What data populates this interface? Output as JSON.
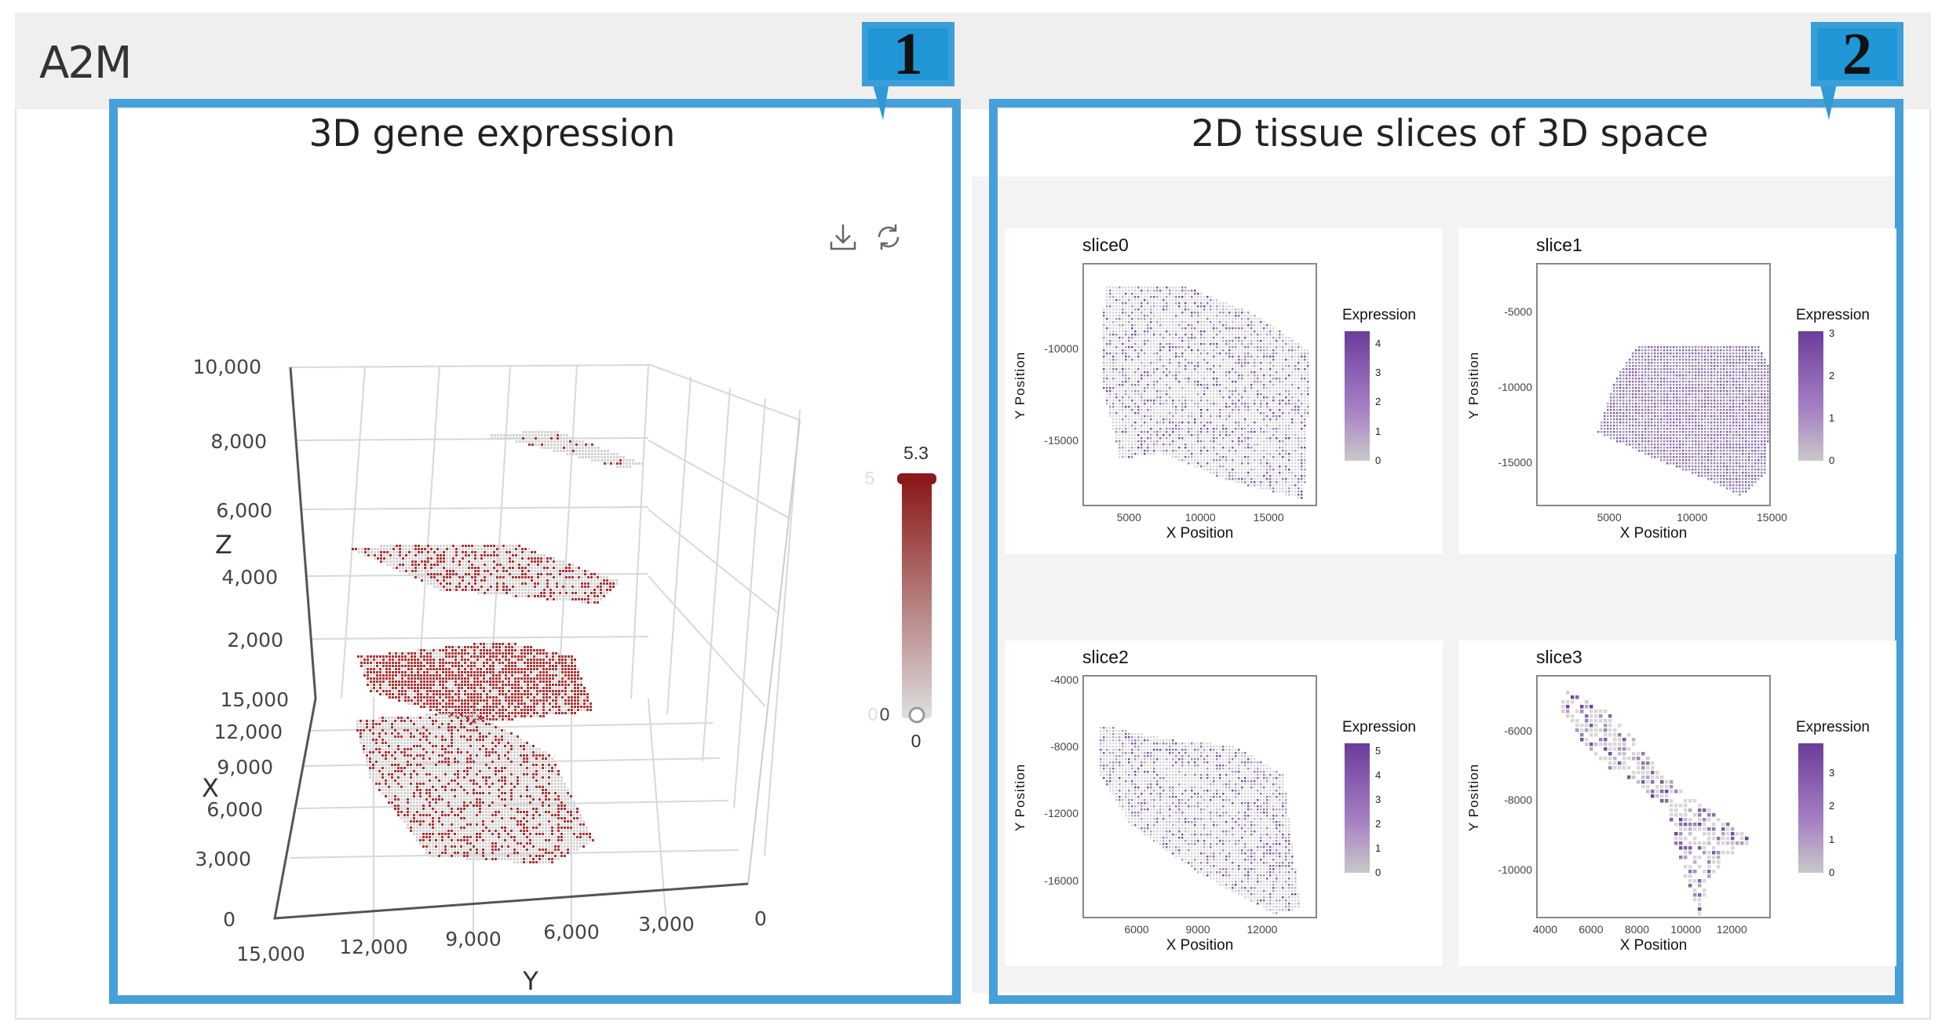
{
  "gene": "A2M",
  "badges": [
    "1",
    "2"
  ],
  "panel1": {
    "title": "3D gene expression",
    "toolbar": {
      "download_icon": "download-icon",
      "refresh_icon": "refresh-icon"
    },
    "axes": {
      "z_label": "Z",
      "x_label": "X",
      "y_label": "Y",
      "z_ticks": [
        "10,000",
        "8,000",
        "6,000",
        "4,000",
        "2,000"
      ],
      "x_ticks": [
        "15,000",
        "12,000",
        "9,000",
        "6,000",
        "3,000",
        "0"
      ],
      "y_ticks": [
        "15,000",
        "12,000",
        "9,000",
        "6,000",
        "3,000",
        "0"
      ]
    },
    "colorbar": {
      "max_label": "5.3",
      "min_label": "0",
      "faint_max": "5",
      "faint_min": "0",
      "low_color": "#d9d9d9",
      "high_color": "#8b1a1a"
    }
  },
  "panel2": {
    "title": "2D tissue slices of 3D space",
    "slices": [
      {
        "name": "slice0",
        "xlabel": "X Position",
        "ylabel": "Y Position",
        "legend": "Expression",
        "xlim": [
          1450,
          18640
        ],
        "ylim": [
          -18520,
          -5310
        ],
        "xticks": [
          5000,
          10000,
          15000
        ],
        "yticks": [
          -10000,
          -15000
        ],
        "cmax": 4.42,
        "cticks": [
          0,
          1,
          2,
          3,
          4
        ]
      },
      {
        "name": "slice1",
        "xlabel": "X Position",
        "ylabel": "Y Position",
        "legend": "Expression",
        "xlim": [
          300,
          15000
        ],
        "ylim": [
          -17860,
          -1750
        ],
        "xticks": [
          5000,
          10000,
          15000
        ],
        "yticks": [
          -5000,
          -10000,
          -15000
        ],
        "cmax": 3.05,
        "cticks": [
          0,
          1,
          2,
          3
        ]
      },
      {
        "name": "slice2",
        "xlabel": "X Position",
        "ylabel": "Y Position",
        "legend": "Expression",
        "xlim": [
          3250,
          14750
        ],
        "ylim": [
          -18230,
          -3655
        ],
        "xticks": [
          6000,
          9000,
          12000
        ],
        "yticks": [
          -4000,
          -8000,
          -12000,
          -16000
        ],
        "cmax": 5.32,
        "cticks": [
          0,
          1,
          2,
          3,
          4,
          5
        ]
      },
      {
        "name": "slice3",
        "xlabel": "X Position",
        "ylabel": "Y Position",
        "legend": "Expression",
        "xlim": [
          3525,
          13750
        ],
        "ylim": [
          -11370,
          -4383
        ],
        "xticks": [
          4000,
          6000,
          8000,
          10000,
          12000
        ],
        "yticks": [
          -6000,
          -8000,
          -10000
        ],
        "cmax": 3.9,
        "cticks": [
          0,
          1,
          2,
          3
        ]
      }
    ]
  },
  "colors": {
    "accent": "#45a0da",
    "badge": "#2196d6",
    "purple": "#6a3d9a",
    "red": "#8b1a1a"
  }
}
